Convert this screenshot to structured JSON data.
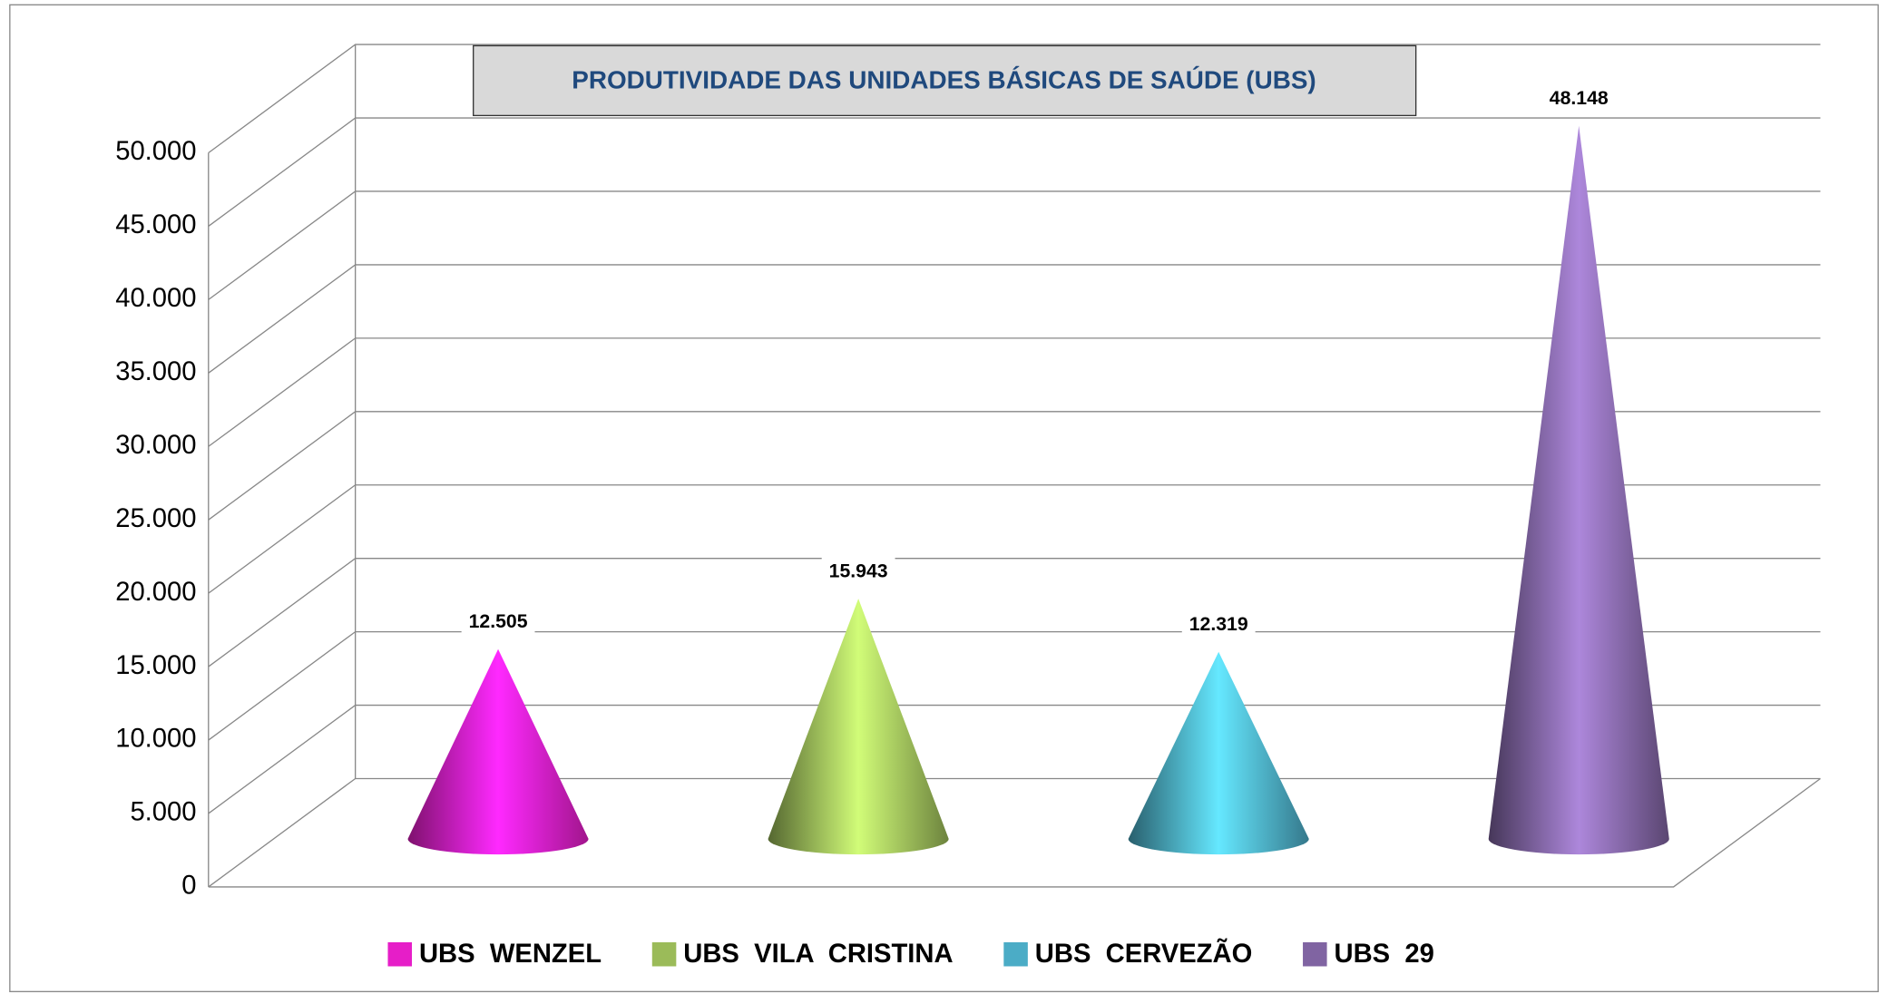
{
  "chart_data": {
    "type": "cone",
    "title": "PRODUTIVIDADE DAS UNIDADES BÁSICAS DE SAÚDE (UBS)",
    "series": [
      {
        "name": "UBS  WENZEL",
        "color": "#e61ec8",
        "values": [
          12505
        ],
        "value_labels": [
          "12.505"
        ]
      },
      {
        "name": "UBS  VILA  CRISTINA",
        "color": "#9bbb59",
        "values": [
          15943
        ],
        "value_labels": [
          "15.943"
        ]
      },
      {
        "name": "UBS  CERVEZÃO",
        "color": "#4bacc6",
        "values": [
          12319
        ],
        "value_labels": [
          "12.319"
        ]
      },
      {
        "name": "UBS  29",
        "color": "#8064a2",
        "values": [
          48148
        ],
        "value_labels": [
          "48.148"
        ]
      }
    ],
    "ylim": [
      0,
      50000
    ],
    "yticks": [
      0,
      {
        "value": 5000,
        "label": "5.000"
      },
      {
        "value": 10000,
        "label": "10.000"
      },
      {
        "value": 15000,
        "label": "15.000"
      },
      {
        "value": 20000,
        "label": "20.000"
      },
      {
        "value": 25000,
        "label": "25.000"
      },
      {
        "value": 30000,
        "label": "30.000"
      },
      {
        "value": 35000,
        "label": "35.000"
      },
      {
        "value": 40000,
        "label": "40.000"
      },
      {
        "value": 45000,
        "label": "45.000"
      },
      {
        "value": 50000,
        "label": "50.000"
      }
    ],
    "grid": true,
    "legend": "bottom"
  }
}
